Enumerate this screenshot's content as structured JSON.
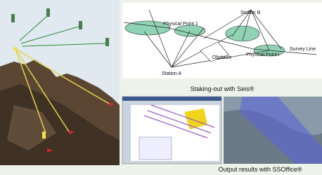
{
  "diagram": {
    "labels": [
      "Physical Point 1",
      "Station B",
      "Survey Line",
      "Obstacle",
      "Physical Point i",
      "Station A"
    ],
    "captions": [
      "Staking-out with Seis®",
      "Output results with SSOffice®"
    ]
  }
}
